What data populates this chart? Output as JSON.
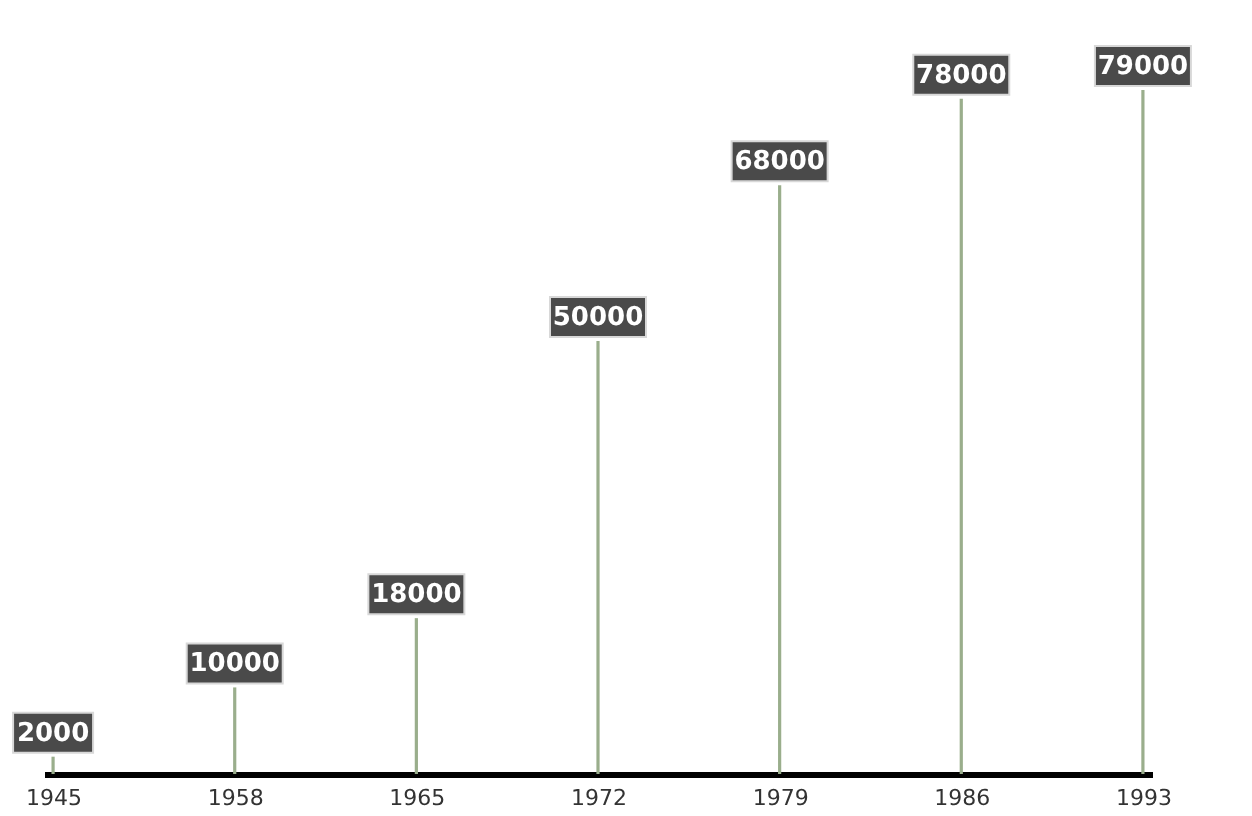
{
  "chart_data": {
    "type": "bar",
    "categories": [
      "1945",
      "1958",
      "1965",
      "1972",
      "1979",
      "1986",
      "1993"
    ],
    "values": [
      2000,
      10000,
      18000,
      50000,
      68000,
      78000,
      79000
    ],
    "color": "#9aae8c",
    "data_labels": true
  }
}
